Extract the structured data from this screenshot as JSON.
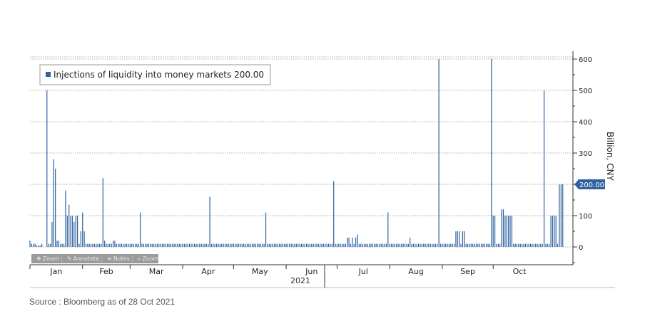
{
  "chart_data": {
    "type": "bar",
    "title": "",
    "legend": {
      "label": "Injections of liquidity into money markets 200.00",
      "position": "top-left",
      "color": "#2f63a0"
    },
    "y_axis": {
      "label": "Billion, CNY",
      "position": "right",
      "ylim": [
        -50,
        620
      ],
      "ticks": [
        0,
        100,
        200,
        300,
        400,
        500,
        600
      ],
      "tick_labels": [
        "0",
        "100",
        "200",
        "300",
        "400",
        "500",
        "600"
      ]
    },
    "x_axis": {
      "month_labels": [
        "Jan",
        "Feb",
        "Mar",
        "Apr",
        "May",
        "Jun",
        "Jul",
        "Aug",
        "Sep",
        "Oct"
      ],
      "year_label": "2021"
    },
    "last_value_label": "200.00",
    "last_value": 200,
    "grid": true,
    "bar_color": "#2f63a0",
    "series": [
      {
        "values": [
          [
            1,
            20
          ],
          [
            2,
            10
          ],
          [
            3,
            10
          ],
          [
            4,
            10
          ],
          [
            5,
            5
          ],
          [
            6,
            5
          ],
          [
            7,
            5
          ],
          [
            8,
            10
          ],
          [
            11,
            500
          ],
          [
            12,
            10
          ],
          [
            13,
            10
          ],
          [
            14,
            80
          ],
          [
            15,
            280
          ],
          [
            16,
            250
          ],
          [
            17,
            20
          ],
          [
            18,
            20
          ],
          [
            19,
            10
          ],
          [
            20,
            10
          ],
          [
            21,
            10
          ],
          [
            22,
            180
          ],
          [
            23,
            100
          ],
          [
            24,
            135
          ],
          [
            25,
            100
          ],
          [
            26,
            100
          ],
          [
            27,
            80
          ],
          [
            28,
            100
          ],
          [
            29,
            100
          ],
          [
            30,
            10
          ],
          [
            31,
            50
          ],
          [
            32,
            110
          ],
          [
            33,
            50
          ],
          [
            34,
            10
          ],
          [
            35,
            10
          ],
          [
            36,
            10
          ],
          [
            37,
            10
          ],
          [
            38,
            10
          ],
          [
            39,
            10
          ],
          [
            40,
            10
          ],
          [
            41,
            10
          ],
          [
            42,
            10
          ],
          [
            43,
            10
          ],
          [
            44,
            220
          ],
          [
            45,
            20
          ],
          [
            46,
            10
          ],
          [
            47,
            10
          ],
          [
            48,
            10
          ],
          [
            49,
            10
          ],
          [
            50,
            20
          ],
          [
            51,
            20
          ],
          [
            52,
            10
          ],
          [
            53,
            10
          ],
          [
            54,
            10
          ],
          [
            55,
            10
          ],
          [
            56,
            10
          ],
          [
            57,
            10
          ],
          [
            58,
            10
          ],
          [
            59,
            10
          ],
          [
            60,
            10
          ],
          [
            61,
            10
          ],
          [
            62,
            10
          ],
          [
            63,
            10
          ],
          [
            64,
            10
          ],
          [
            65,
            10
          ],
          [
            66,
            110
          ],
          [
            67,
            10
          ],
          [
            68,
            10
          ],
          [
            69,
            10
          ],
          [
            70,
            10
          ],
          [
            71,
            10
          ],
          [
            72,
            10
          ],
          [
            73,
            10
          ],
          [
            74,
            10
          ],
          [
            75,
            10
          ],
          [
            76,
            10
          ],
          [
            77,
            10
          ],
          [
            78,
            10
          ],
          [
            79,
            10
          ],
          [
            80,
            10
          ],
          [
            81,
            10
          ],
          [
            82,
            10
          ],
          [
            83,
            10
          ],
          [
            84,
            10
          ],
          [
            85,
            10
          ],
          [
            86,
            10
          ],
          [
            87,
            10
          ],
          [
            88,
            10
          ],
          [
            89,
            10
          ],
          [
            90,
            10
          ],
          [
            91,
            10
          ],
          [
            92,
            10
          ],
          [
            93,
            10
          ],
          [
            94,
            10
          ],
          [
            95,
            10
          ],
          [
            96,
            10
          ],
          [
            97,
            10
          ],
          [
            98,
            10
          ],
          [
            99,
            10
          ],
          [
            100,
            10
          ],
          [
            101,
            10
          ],
          [
            102,
            10
          ],
          [
            103,
            10
          ],
          [
            104,
            10
          ],
          [
            105,
            10
          ],
          [
            106,
            10
          ],
          [
            107,
            160
          ],
          [
            108,
            10
          ],
          [
            109,
            10
          ],
          [
            110,
            10
          ],
          [
            111,
            10
          ],
          [
            112,
            10
          ],
          [
            113,
            10
          ],
          [
            114,
            10
          ],
          [
            115,
            10
          ],
          [
            116,
            10
          ],
          [
            117,
            10
          ],
          [
            118,
            10
          ],
          [
            119,
            10
          ],
          [
            120,
            10
          ],
          [
            121,
            10
          ],
          [
            122,
            10
          ],
          [
            123,
            10
          ],
          [
            124,
            10
          ],
          [
            125,
            10
          ],
          [
            126,
            10
          ],
          [
            127,
            10
          ],
          [
            128,
            10
          ],
          [
            129,
            10
          ],
          [
            130,
            10
          ],
          [
            131,
            10
          ],
          [
            132,
            10
          ],
          [
            133,
            10
          ],
          [
            134,
            10
          ],
          [
            135,
            10
          ],
          [
            136,
            10
          ],
          [
            137,
            10
          ],
          [
            138,
            10
          ],
          [
            139,
            10
          ],
          [
            140,
            110
          ],
          [
            141,
            10
          ],
          [
            142,
            10
          ],
          [
            143,
            10
          ],
          [
            144,
            10
          ],
          [
            145,
            10
          ],
          [
            146,
            10
          ],
          [
            147,
            10
          ],
          [
            148,
            10
          ],
          [
            149,
            10
          ],
          [
            150,
            10
          ],
          [
            151,
            10
          ],
          [
            152,
            10
          ],
          [
            153,
            10
          ],
          [
            154,
            10
          ],
          [
            155,
            10
          ],
          [
            156,
            10
          ],
          [
            157,
            10
          ],
          [
            158,
            10
          ],
          [
            159,
            10
          ],
          [
            160,
            10
          ],
          [
            161,
            10
          ],
          [
            162,
            10
          ],
          [
            163,
            10
          ],
          [
            164,
            10
          ],
          [
            165,
            10
          ],
          [
            166,
            10
          ],
          [
            167,
            10
          ],
          [
            168,
            10
          ],
          [
            169,
            10
          ],
          [
            170,
            10
          ],
          [
            171,
            10
          ],
          [
            172,
            10
          ],
          [
            173,
            10
          ],
          [
            174,
            10
          ],
          [
            175,
            10
          ],
          [
            176,
            10
          ],
          [
            177,
            10
          ],
          [
            178,
            10
          ],
          [
            179,
            10
          ],
          [
            180,
            210
          ],
          [
            181,
            10
          ],
          [
            182,
            10
          ],
          [
            183,
            10
          ],
          [
            184,
            10
          ],
          [
            185,
            10
          ],
          [
            186,
            10
          ],
          [
            187,
            10
          ],
          [
            188,
            30
          ],
          [
            189,
            30
          ],
          [
            190,
            10
          ],
          [
            191,
            30
          ],
          [
            192,
            10
          ],
          [
            193,
            30
          ],
          [
            194,
            40
          ],
          [
            195,
            10
          ],
          [
            196,
            10
          ],
          [
            197,
            10
          ],
          [
            198,
            10
          ],
          [
            199,
            10
          ],
          [
            200,
            10
          ],
          [
            201,
            10
          ],
          [
            202,
            10
          ],
          [
            203,
            10
          ],
          [
            204,
            10
          ],
          [
            205,
            10
          ],
          [
            206,
            10
          ],
          [
            207,
            10
          ],
          [
            208,
            10
          ],
          [
            209,
            10
          ],
          [
            210,
            10
          ],
          [
            211,
            10
          ],
          [
            212,
            110
          ],
          [
            213,
            10
          ],
          [
            214,
            10
          ],
          [
            215,
            10
          ],
          [
            216,
            10
          ],
          [
            217,
            10
          ],
          [
            218,
            10
          ],
          [
            219,
            10
          ],
          [
            220,
            10
          ],
          [
            221,
            10
          ],
          [
            222,
            10
          ],
          [
            223,
            10
          ],
          [
            224,
            10
          ],
          [
            225,
            30
          ],
          [
            226,
            10
          ],
          [
            227,
            10
          ],
          [
            228,
            10
          ],
          [
            229,
            10
          ],
          [
            230,
            10
          ],
          [
            231,
            10
          ],
          [
            232,
            10
          ],
          [
            233,
            10
          ],
          [
            234,
            10
          ],
          [
            235,
            10
          ],
          [
            236,
            10
          ],
          [
            237,
            10
          ],
          [
            238,
            10
          ],
          [
            239,
            10
          ],
          [
            240,
            10
          ],
          [
            241,
            10
          ],
          [
            242,
            600
          ],
          [
            243,
            10
          ],
          [
            244,
            10
          ],
          [
            245,
            10
          ],
          [
            246,
            10
          ],
          [
            247,
            10
          ],
          [
            248,
            10
          ],
          [
            249,
            10
          ],
          [
            250,
            10
          ],
          [
            251,
            10
          ],
          [
            252,
            50
          ],
          [
            253,
            50
          ],
          [
            254,
            50
          ],
          [
            255,
            10
          ],
          [
            256,
            50
          ],
          [
            257,
            50
          ],
          [
            258,
            10
          ],
          [
            259,
            10
          ],
          [
            260,
            10
          ],
          [
            261,
            10
          ],
          [
            262,
            10
          ],
          [
            263,
            10
          ],
          [
            264,
            10
          ],
          [
            265,
            10
          ],
          [
            266,
            10
          ],
          [
            267,
            10
          ],
          [
            268,
            10
          ],
          [
            269,
            10
          ],
          [
            270,
            10
          ],
          [
            271,
            10
          ],
          [
            272,
            10
          ],
          [
            273,
            600
          ],
          [
            274,
            100
          ],
          [
            275,
            100
          ],
          [
            276,
            10
          ],
          [
            277,
            10
          ],
          [
            278,
            10
          ],
          [
            279,
            120
          ],
          [
            280,
            120
          ],
          [
            281,
            100
          ],
          [
            282,
            100
          ],
          [
            283,
            100
          ],
          [
            284,
            100
          ],
          [
            285,
            100
          ],
          [
            286,
            10
          ],
          [
            287,
            10
          ],
          [
            288,
            10
          ],
          [
            289,
            10
          ],
          [
            290,
            10
          ],
          [
            291,
            10
          ],
          [
            292,
            10
          ],
          [
            293,
            10
          ],
          [
            294,
            10
          ],
          [
            295,
            10
          ],
          [
            296,
            10
          ],
          [
            297,
            10
          ],
          [
            298,
            10
          ],
          [
            299,
            10
          ],
          [
            300,
            10
          ],
          [
            301,
            10
          ],
          [
            302,
            10
          ],
          [
            303,
            10
          ],
          [
            304,
            500
          ],
          [
            305,
            10
          ],
          [
            306,
            10
          ],
          [
            307,
            10
          ],
          [
            308,
            100
          ],
          [
            309,
            100
          ],
          [
            310,
            100
          ],
          [
            311,
            100
          ],
          [
            312,
            10
          ],
          [
            313,
            200
          ],
          [
            314,
            200
          ],
          [
            315,
            200
          ]
        ]
      }
    ]
  },
  "toolbar": {
    "zoom_label": "Zoom",
    "annotate_label": "Annotate",
    "notes_label": "Notes",
    "zoom2_label": "Zoom"
  },
  "source": "Source : Bloomberg as of 28 Oct 2021"
}
